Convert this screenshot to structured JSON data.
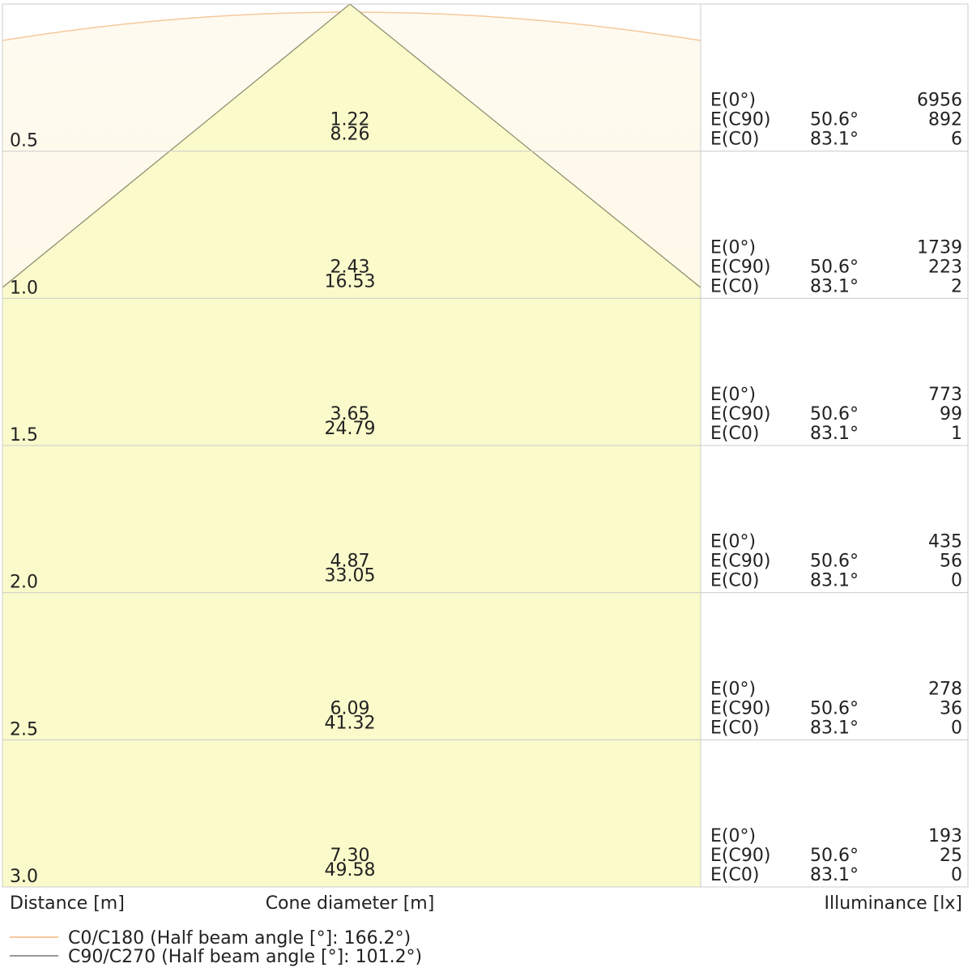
{
  "rows": [
    {
      "distance": "0.5",
      "cone_c90": "1.22",
      "cone_c0": "8.26",
      "e0_label": "E(0°)",
      "e0": "6956",
      "ec90_label": "E(C90)",
      "ec90_angle": "50.6°",
      "ec90": "892",
      "ec0_label": "E(C0)",
      "ec0_angle": "83.1°",
      "ec0": "6"
    },
    {
      "distance": "1.0",
      "cone_c90": "2.43",
      "cone_c0": "16.53",
      "e0_label": "E(0°)",
      "e0": "1739",
      "ec90_label": "E(C90)",
      "ec90_angle": "50.6°",
      "ec90": "223",
      "ec0_label": "E(C0)",
      "ec0_angle": "83.1°",
      "ec0": "2"
    },
    {
      "distance": "1.5",
      "cone_c90": "3.65",
      "cone_c0": "24.79",
      "e0_label": "E(0°)",
      "e0": "773",
      "ec90_label": "E(C90)",
      "ec90_angle": "50.6°",
      "ec90": "99",
      "ec0_label": "E(C0)",
      "ec0_angle": "83.1°",
      "ec0": "1"
    },
    {
      "distance": "2.0",
      "cone_c90": "4.87",
      "cone_c0": "33.05",
      "e0_label": "E(0°)",
      "e0": "435",
      "ec90_label": "E(C90)",
      "ec90_angle": "50.6°",
      "ec90": "56",
      "ec0_label": "E(C0)",
      "ec0_angle": "83.1°",
      "ec0": "0"
    },
    {
      "distance": "2.5",
      "cone_c90": "6.09",
      "cone_c0": "41.32",
      "e0_label": "E(0°)",
      "e0": "278",
      "ec90_label": "E(C90)",
      "ec90_angle": "50.6°",
      "ec90": "36",
      "ec0_label": "E(C0)",
      "ec0_angle": "83.1°",
      "ec0": "0"
    },
    {
      "distance": "3.0",
      "cone_c90": "7.30",
      "cone_c0": "49.58",
      "e0_label": "E(0°)",
      "e0": "193",
      "ec90_label": "E(C90)",
      "ec90_angle": "50.6°",
      "ec90": "25",
      "ec0_label": "E(C0)",
      "ec0_angle": "83.1°",
      "ec0": "0"
    }
  ],
  "footer": {
    "distance": "Distance [m]",
    "cone": "Cone diameter [m]",
    "illuminance": "Illuminance [lx]"
  },
  "legend": [
    "C0/C180 (Half beam angle [°]: 166.2°)",
    "C90/C270 (Half beam angle [°]: 101.2°)"
  ]
}
